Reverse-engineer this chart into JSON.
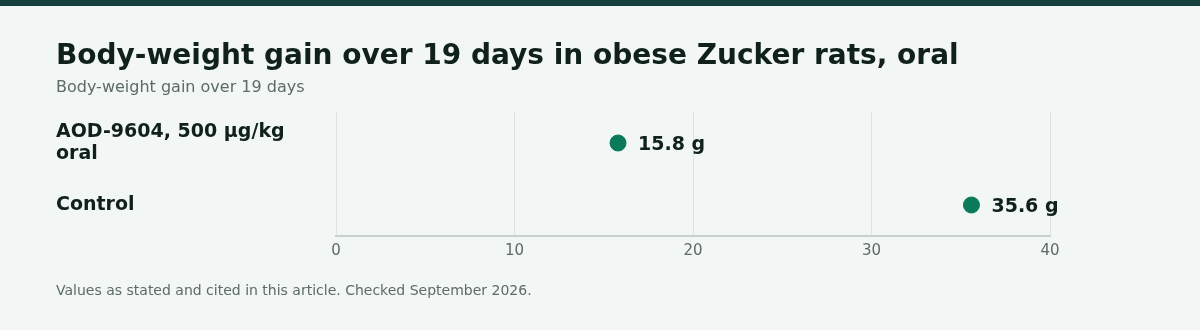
{
  "chart_data": {
    "type": "scatter",
    "orientation": "horizontal",
    "title": "Body-weight gain over 19 days in obese Zucker rats, oral",
    "subtitle": "Body-weight gain over 19 days",
    "categories": [
      "AOD-9604, 500 µg/kg oral",
      "Control"
    ],
    "series": [
      {
        "color": "#0b7a5a",
        "values": [
          15.8,
          35.6
        ],
        "value_labels": [
          "15.8 g",
          "35.6 g"
        ]
      }
    ],
    "xlim": [
      0,
      40
    ],
    "xticks": [
      0,
      10,
      20,
      30,
      40
    ],
    "grid": "x",
    "marker": "circle",
    "legend": false,
    "annotations": [
      "Values as stated and cited in this article. Checked September 2026."
    ]
  }
}
